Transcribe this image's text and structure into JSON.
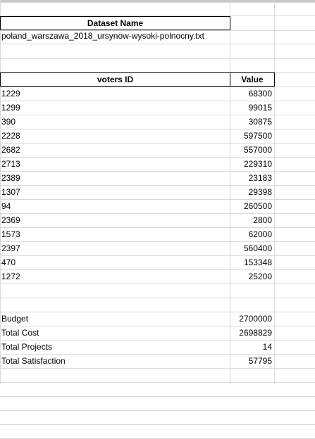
{
  "dataset": {
    "header": "Dataset Name",
    "name": "poland_warszawa_2018_ursynow-wysoki-polnocny.txt"
  },
  "table": {
    "col_voters": "voters ID",
    "col_value": "Value",
    "rows": [
      {
        "id": "1229",
        "value": "68300"
      },
      {
        "id": "1299",
        "value": "99015"
      },
      {
        "id": "390",
        "value": "30875"
      },
      {
        "id": "2228",
        "value": "597500"
      },
      {
        "id": "2682",
        "value": "557000"
      },
      {
        "id": "2713",
        "value": "229310"
      },
      {
        "id": "2389",
        "value": "23183"
      },
      {
        "id": "1307",
        "value": "29398"
      },
      {
        "id": "94",
        "value": "260500"
      },
      {
        "id": "2369",
        "value": "2800"
      },
      {
        "id": "1573",
        "value": "62000"
      },
      {
        "id": "2397",
        "value": "560400"
      },
      {
        "id": "470",
        "value": "153348"
      },
      {
        "id": "1272",
        "value": "25200"
      }
    ]
  },
  "summary": [
    {
      "label": "Budget",
      "value": "2700000"
    },
    {
      "label": "Total Cost",
      "value": "2698829"
    },
    {
      "label": "Total Projects",
      "value": "14"
    },
    {
      "label": "Total Satisfaction",
      "value": "57795"
    }
  ]
}
